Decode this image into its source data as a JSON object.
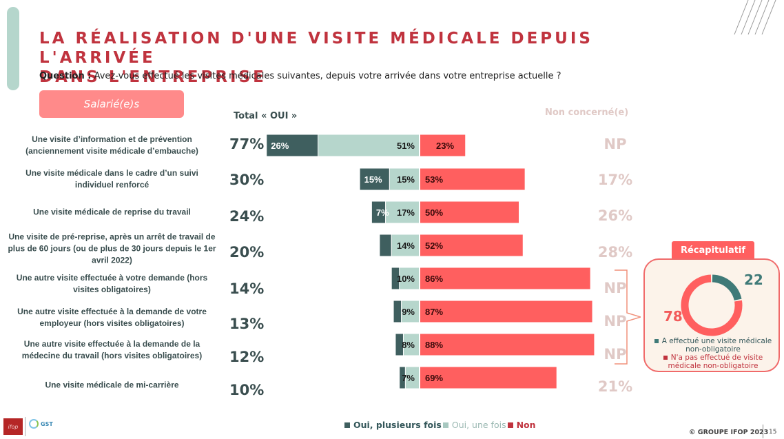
{
  "header": {
    "title_line1": "LA RÉALISATION D'UNE VISITE MÉDICALE DEPUIS L'ARRIVÉE",
    "title_line2": "DANS L'ENTREPRISE",
    "question_label": "Question :",
    "question_text": " Avez-vous effectué les visites médicales suivantes, depuis votre arrivée dans votre entreprise actuelle ?"
  },
  "segment_label": "Salarié(e)s",
  "column_headers": {
    "total_oui": "Total « OUI »",
    "non_concerne": "Non concerné(e)"
  },
  "colors": {
    "oui_plusieurs": "#3f5f5f",
    "oui_une": "#b6d6cc",
    "non": "#ff5f5f",
    "title": "#c0333e",
    "non_concerne_text": "#e0c9c6"
  },
  "chart_data": [
    {
      "type": "bar",
      "subtype": "diverging-stacked-horizontal",
      "title": "La réalisation d'une visite médicale depuis l'arrivée dans l'entreprise",
      "categories": [
        "Une visite d’information et de prévention (anciennement visite médicale d’embauche)",
        "Une visite médicale dans le cadre d’un suivi individuel renforcé",
        "Une visite médicale de reprise du travail",
        "Une visite de pré-reprise, après un arrêt de travail de plus de 60 jours (ou de plus de 30 jours depuis le 1er avril 2022)",
        "Une autre visite effectuée à votre demande (hors visites obligatoires)",
        "Une autre visite effectuée à la demande de votre employeur (hors visites obligatoires)",
        "Une autre visite effectuée à la demande de la médecine du travail (hors visites obligatoires)",
        "Une visite médicale de mi-carrière"
      ],
      "series": [
        {
          "name": "Oui, plusieurs fois",
          "values": [
            26,
            15,
            7,
            6,
            4,
            4,
            4,
            3
          ],
          "labels": [
            "26%",
            "15%",
            "7%",
            "",
            "",
            "",
            "",
            ""
          ]
        },
        {
          "name": "Oui, une fois",
          "values": [
            51,
            15,
            17,
            14,
            10,
            9,
            8,
            7
          ],
          "labels": [
            "51%",
            "15%",
            "17%",
            "14%",
            "10%",
            "9%",
            "8%",
            "7%"
          ]
        },
        {
          "name": "Non",
          "values": [
            23,
            53,
            50,
            52,
            86,
            87,
            88,
            69
          ],
          "labels": [
            "23%",
            "53%",
            "50%",
            "52%",
            "86%",
            "87%",
            "88%",
            "69%"
          ]
        }
      ],
      "total_oui": [
        "77%",
        "30%",
        "24%",
        "20%",
        "14%",
        "13%",
        "12%",
        "10%"
      ],
      "non_concerne": [
        "NP",
        "17%",
        "26%",
        "28%",
        "NP",
        "NP",
        "NP",
        "21%"
      ],
      "legend": [
        "Oui, plusieurs fois",
        "Oui, une fois",
        "Non"
      ],
      "legend_position": "bottom",
      "grid": false
    },
    {
      "type": "pie",
      "subtype": "donut",
      "title": "Récapitulatif",
      "labels": [
        "A effectué une visite médicale non-obligatoire",
        "N'a pas effectué de visite médicale non-obligatoire"
      ],
      "values": [
        22,
        78
      ],
      "colors": [
        "#3f7a78",
        "#ff5f5f"
      ]
    }
  ],
  "recap": {
    "tab_label": "Récapitulatif",
    "value_yes": "22",
    "value_no": "78",
    "legend_yes": "A effectué une visite médicale non-obligatoire",
    "legend_no": "N'a pas effectué de visite médicale non-obligatoire"
  },
  "footer": {
    "logo_ifop": "ifop",
    "logo_gst": "GST",
    "copyright": "© GROUPE IFOP 2023",
    "page_number": "15"
  }
}
